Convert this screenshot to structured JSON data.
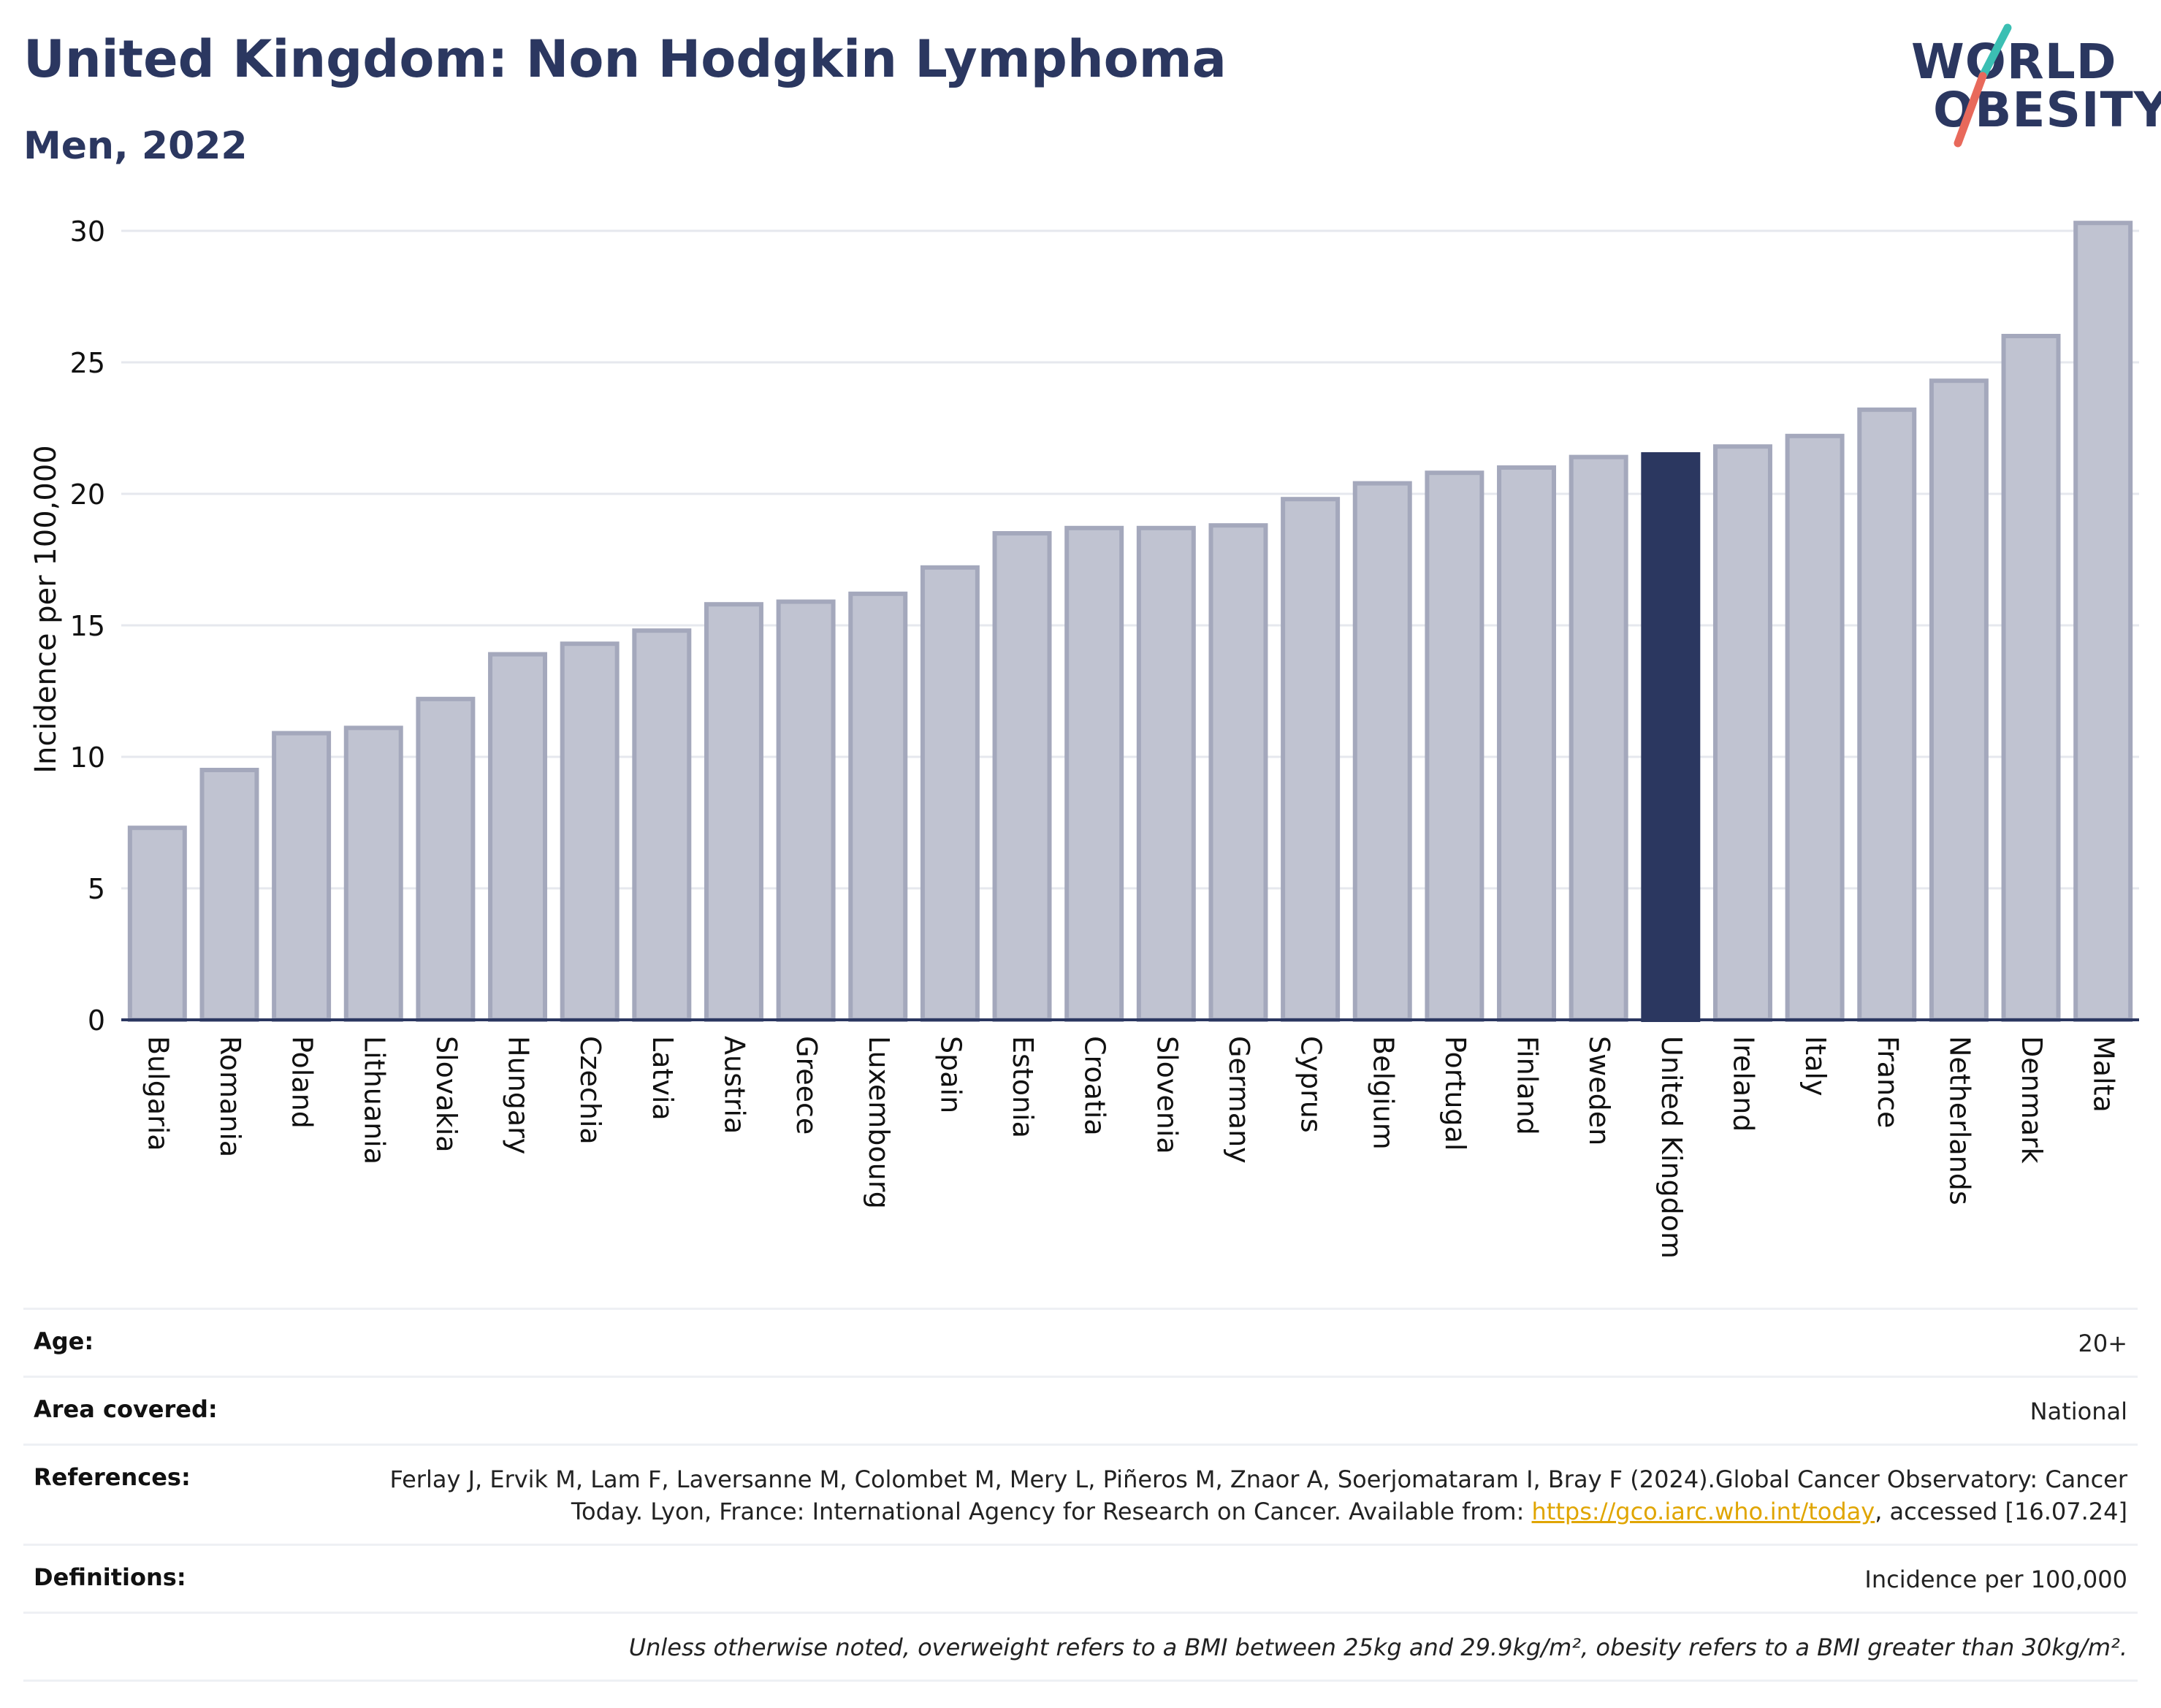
{
  "header": {
    "title": "United Kingdom: Non Hodgkin Lymphoma",
    "subtitle": "Men, 2022"
  },
  "logo": {
    "line1": "WORLD",
    "line2": "OBESITY",
    "colors": {
      "text": "#2b3760",
      "slash_top": "#3bbfb3",
      "slash_bottom": "#e8695b"
    }
  },
  "colors": {
    "bar_fill": "#c0c3d1",
    "bar_border": "#a4a8bc",
    "highlight_fill": "#2b3760",
    "axis": "#2b3760",
    "grid": "#e6e8ee"
  },
  "chart_data": {
    "type": "bar",
    "ylabel": "Incidence per 100,000",
    "xlabel": "",
    "ylim": [
      0,
      31
    ],
    "yticks": [
      0,
      5,
      10,
      15,
      20,
      25,
      30
    ],
    "grid": true,
    "highlight": "United Kingdom",
    "categories": [
      "Bulgaria",
      "Romania",
      "Poland",
      "Lithuania",
      "Slovakia",
      "Hungary",
      "Czechia",
      "Latvia",
      "Austria",
      "Greece",
      "Luxembourg",
      "Spain",
      "Estonia",
      "Croatia",
      "Slovenia",
      "Germany",
      "Cyprus",
      "Belgium",
      "Portugal",
      "Finland",
      "Sweden",
      "United Kingdom",
      "Ireland",
      "Italy",
      "France",
      "Netherlands",
      "Denmark",
      "Malta"
    ],
    "values": [
      7.3,
      9.5,
      10.9,
      11.1,
      12.2,
      13.9,
      14.3,
      14.8,
      15.8,
      15.9,
      16.2,
      17.2,
      18.5,
      18.7,
      18.7,
      18.8,
      19.8,
      20.4,
      20.8,
      21.0,
      21.4,
      21.5,
      21.8,
      22.2,
      23.2,
      24.3,
      26.0,
      30.3
    ]
  },
  "info": {
    "age_label": "Age:",
    "age_value": "20+",
    "area_label": "Area covered:",
    "area_value": "National",
    "references_label": "References:",
    "references_text": "Ferlay J, Ervik M, Lam F, Laversanne M, Colombet M, Mery L, Piñeros M, Znaor A, Soerjomataram I, Bray F (2024).Global Cancer Observatory: Cancer Today. Lyon, France: International Agency for Research on Cancer. Available from:",
    "references_link": "https://gco.iarc.who.int/today",
    "references_suffix": ", accessed [16.07.24]",
    "definitions_label": "Definitions:",
    "definitions_value": "Incidence per 100,000",
    "note": "Unless otherwise noted, overweight refers to a BMI between 25kg and 29.9kg/m², obesity refers to a BMI greater than 30kg/m²."
  }
}
